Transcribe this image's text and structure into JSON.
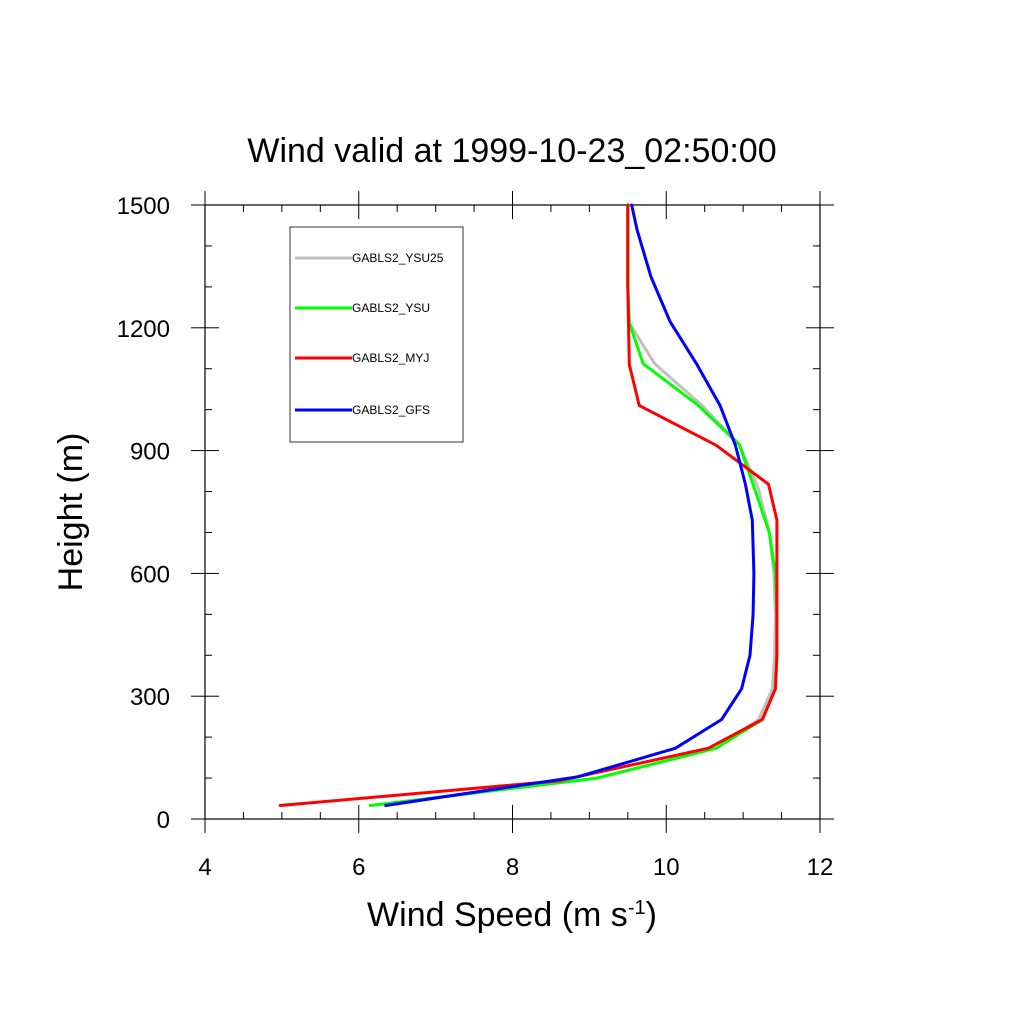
{
  "chart_data": {
    "type": "line",
    "title": "Wind valid at 1999-10-23_02:50:00",
    "xlabel_main": "Wind Speed (m s",
    "xlabel_sup": "-1",
    "xlabel_end": ")",
    "ylabel": "Height (m)",
    "xlim": [
      4,
      12
    ],
    "ylim": [
      0,
      1500
    ],
    "xticks": [
      4,
      6,
      8,
      10,
      12
    ],
    "yticks": [
      0,
      300,
      600,
      900,
      1200,
      1500
    ],
    "xtick_labels": [
      "4",
      "6",
      "8",
      "10",
      "12"
    ],
    "ytick_labels": [
      "0",
      "300",
      "600",
      "900",
      "1200",
      "1500"
    ],
    "legend_position": "top-left",
    "series": [
      {
        "name": "GABLS2_YSU25",
        "color": "#c0c0c0",
        "points": [
          [
            6.15,
            33
          ],
          [
            9.1,
            100
          ],
          [
            10.65,
            173
          ],
          [
            11.2,
            243
          ],
          [
            11.38,
            318
          ],
          [
            11.41,
            400
          ],
          [
            11.42,
            500
          ],
          [
            11.4,
            600
          ],
          [
            11.34,
            700
          ],
          [
            11.2,
            806
          ],
          [
            10.95,
            915
          ],
          [
            10.45,
            1013
          ],
          [
            9.85,
            1112
          ],
          [
            9.52,
            1212
          ],
          [
            9.5,
            1300
          ],
          [
            9.5,
            1500
          ]
        ]
      },
      {
        "name": "GABLS2_YSU",
        "color": "#00ff00",
        "points": [
          [
            6.15,
            33
          ],
          [
            9.1,
            100
          ],
          [
            10.65,
            173
          ],
          [
            11.25,
            243
          ],
          [
            11.42,
            318
          ],
          [
            11.44,
            400
          ],
          [
            11.44,
            500
          ],
          [
            11.42,
            600
          ],
          [
            11.34,
            700
          ],
          [
            11.15,
            806
          ],
          [
            10.95,
            915
          ],
          [
            10.4,
            1013
          ],
          [
            9.7,
            1112
          ],
          [
            9.52,
            1212
          ],
          [
            9.5,
            1300
          ],
          [
            9.5,
            1500
          ]
        ]
      },
      {
        "name": "GABLS2_MYJ",
        "color": "#ff0000",
        "points": [
          [
            4.98,
            33
          ],
          [
            8.6,
            93
          ],
          [
            10.55,
            173
          ],
          [
            11.25,
            243
          ],
          [
            11.42,
            318
          ],
          [
            11.44,
            400
          ],
          [
            11.44,
            500
          ],
          [
            11.44,
            600
          ],
          [
            11.44,
            730
          ],
          [
            11.33,
            818
          ],
          [
            10.65,
            913
          ],
          [
            9.65,
            1010
          ],
          [
            9.52,
            1110
          ],
          [
            9.5,
            1300
          ],
          [
            9.5,
            1500
          ]
        ]
      },
      {
        "name": "GABLS2_GFS",
        "color": "#0000ff",
        "points": [
          [
            6.35,
            33
          ],
          [
            8.85,
            103
          ],
          [
            10.12,
            173
          ],
          [
            10.72,
            243
          ],
          [
            10.98,
            318
          ],
          [
            11.09,
            400
          ],
          [
            11.13,
            500
          ],
          [
            11.14,
            600
          ],
          [
            11.12,
            730
          ],
          [
            11.03,
            818
          ],
          [
            10.9,
            913
          ],
          [
            10.7,
            1010
          ],
          [
            10.4,
            1110
          ],
          [
            10.05,
            1215
          ],
          [
            9.8,
            1325
          ],
          [
            9.62,
            1440
          ],
          [
            9.55,
            1500
          ]
        ]
      }
    ]
  }
}
